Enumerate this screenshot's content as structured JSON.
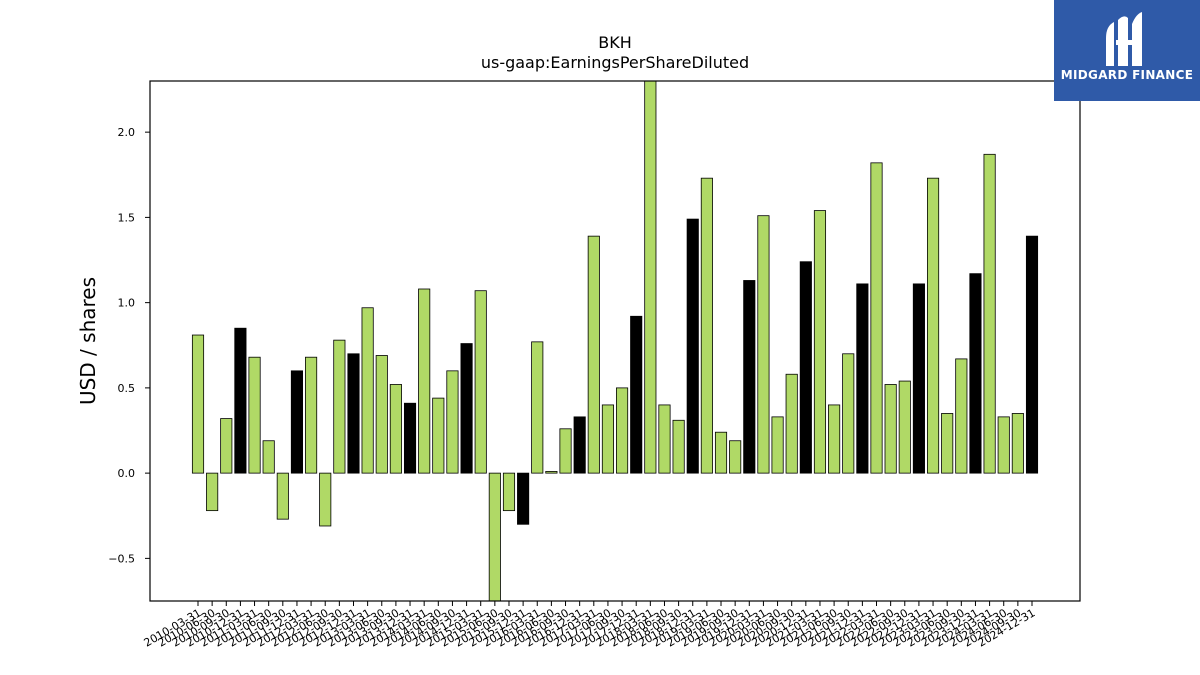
{
  "logo": {
    "text": "MIDGARD FINANCE",
    "background_color": "#2f5aa8",
    "icon": "mh-monogram-icon"
  },
  "chart_data": {
    "type": "bar",
    "title": "BKH",
    "subtitle": "us-gaap:EarningsPerShareDiluted",
    "xlabel": "",
    "ylabel": "USD / shares",
    "ylim": [
      -0.75,
      2.3
    ],
    "yticks": [
      -0.5,
      0.0,
      0.5,
      1.0,
      1.5,
      2.0
    ],
    "ytick_labels": [
      "−0.5",
      "0.0",
      "0.5",
      "1.0",
      "1.5",
      "2.0"
    ],
    "grid": false,
    "colors": {
      "quarterly": "#b0d966",
      "annual": "#000000",
      "edge": "#000000"
    },
    "categories": [
      "2010-03-31",
      "2010-06-30",
      "2010-09-30",
      "2010-12-31",
      "2011-03-31",
      "2011-06-30",
      "2011-09-30",
      "2011-12-31",
      "2012-03-31",
      "2012-06-30",
      "2012-09-30",
      "2012-12-31",
      "2013-03-31",
      "2013-06-30",
      "2013-09-30",
      "2013-12-31",
      "2014-03-31",
      "2014-06-30",
      "2014-09-30",
      "2014-12-31",
      "2015-03-31",
      "2015-06-30",
      "2015-09-30",
      "2015-12-31",
      "2016-03-31",
      "2016-06-30",
      "2016-09-30",
      "2016-12-31",
      "2017-03-31",
      "2017-06-30",
      "2017-09-30",
      "2017-12-31",
      "2018-03-31",
      "2018-06-30",
      "2018-09-30",
      "2018-12-31",
      "2019-03-31",
      "2019-06-30",
      "2019-09-30",
      "2019-12-31",
      "2020-03-31",
      "2020-06-30",
      "2020-09-30",
      "2020-12-31",
      "2021-03-31",
      "2021-06-30",
      "2021-09-30",
      "2021-12-31",
      "2022-03-31",
      "2022-06-30",
      "2022-09-30",
      "2022-12-31",
      "2023-03-31",
      "2023-06-30",
      "2023-09-30",
      "2023-12-31",
      "2024-03-31",
      "2024-06-30",
      "2024-09-30",
      "2024-12-31"
    ],
    "values": [
      0.81,
      -0.22,
      0.32,
      0.85,
      0.68,
      0.19,
      -0.27,
      0.6,
      0.68,
      -0.31,
      0.78,
      0.7,
      0.97,
      0.69,
      0.52,
      0.41,
      1.08,
      0.44,
      0.6,
      0.76,
      1.07,
      -0.77,
      -0.22,
      -0.3,
      0.77,
      0.01,
      0.26,
      0.33,
      1.39,
      0.4,
      0.5,
      0.92,
      2.32,
      0.4,
      0.31,
      1.49,
      1.73,
      0.24,
      0.19,
      1.13,
      1.51,
      0.33,
      0.58,
      1.24,
      1.54,
      0.4,
      0.7,
      1.11,
      1.82,
      0.52,
      0.54,
      1.11,
      1.73,
      0.35,
      0.67,
      1.17,
      1.87,
      0.33,
      0.35,
      1.39
    ],
    "bar_color_keys": [
      "quarterly",
      "quarterly",
      "quarterly",
      "annual",
      "quarterly",
      "quarterly",
      "quarterly",
      "annual",
      "quarterly",
      "quarterly",
      "quarterly",
      "annual",
      "quarterly",
      "quarterly",
      "quarterly",
      "annual",
      "quarterly",
      "quarterly",
      "quarterly",
      "annual",
      "quarterly",
      "quarterly",
      "quarterly",
      "annual",
      "quarterly",
      "quarterly",
      "quarterly",
      "annual",
      "quarterly",
      "quarterly",
      "quarterly",
      "annual",
      "quarterly",
      "quarterly",
      "quarterly",
      "annual",
      "quarterly",
      "quarterly",
      "quarterly",
      "annual",
      "quarterly",
      "quarterly",
      "quarterly",
      "annual",
      "quarterly",
      "quarterly",
      "quarterly",
      "annual",
      "quarterly",
      "quarterly",
      "quarterly",
      "annual",
      "quarterly",
      "quarterly",
      "quarterly",
      "annual",
      "quarterly",
      "quarterly",
      "quarterly",
      "annual"
    ]
  }
}
